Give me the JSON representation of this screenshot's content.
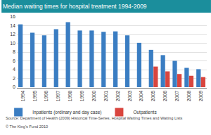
{
  "chart_data": {
    "type": "bar",
    "title": "Median waiting times for hospital treatment 1994-2009",
    "categories": [
      "1994",
      "1995",
      "1996",
      "1997",
      "1998",
      "1999",
      "2000",
      "2001",
      "2002",
      "2003",
      "2004",
      "2005",
      "2006",
      "2007",
      "2008",
      "2009"
    ],
    "series": [
      {
        "name": "Inpatients (ordinary and day case)",
        "color": "#3a7dc2",
        "values": [
          14.3,
          12.4,
          11.8,
          13.2,
          14.8,
          12.9,
          12.9,
          12.6,
          12.7,
          11.8,
          10.1,
          8.5,
          7.3,
          6.0,
          4.4,
          4.1
        ]
      },
      {
        "name": "Outpatients",
        "color": "#d9453e",
        "values": [
          null,
          null,
          null,
          null,
          null,
          null,
          null,
          null,
          null,
          null,
          null,
          4.7,
          3.6,
          3.0,
          2.6,
          2.3
        ]
      }
    ],
    "ylim": [
      0,
      16
    ],
    "yticks": [
      0,
      2,
      4,
      6,
      8,
      10,
      12,
      14,
      16
    ],
    "grid": true,
    "legend": "bottom",
    "annotations": [
      "Source: Department of Health (2009) Historical Time-Series, Hospital Waiting Times and Waiting Lists",
      "© The King's Fund 2010"
    ]
  }
}
